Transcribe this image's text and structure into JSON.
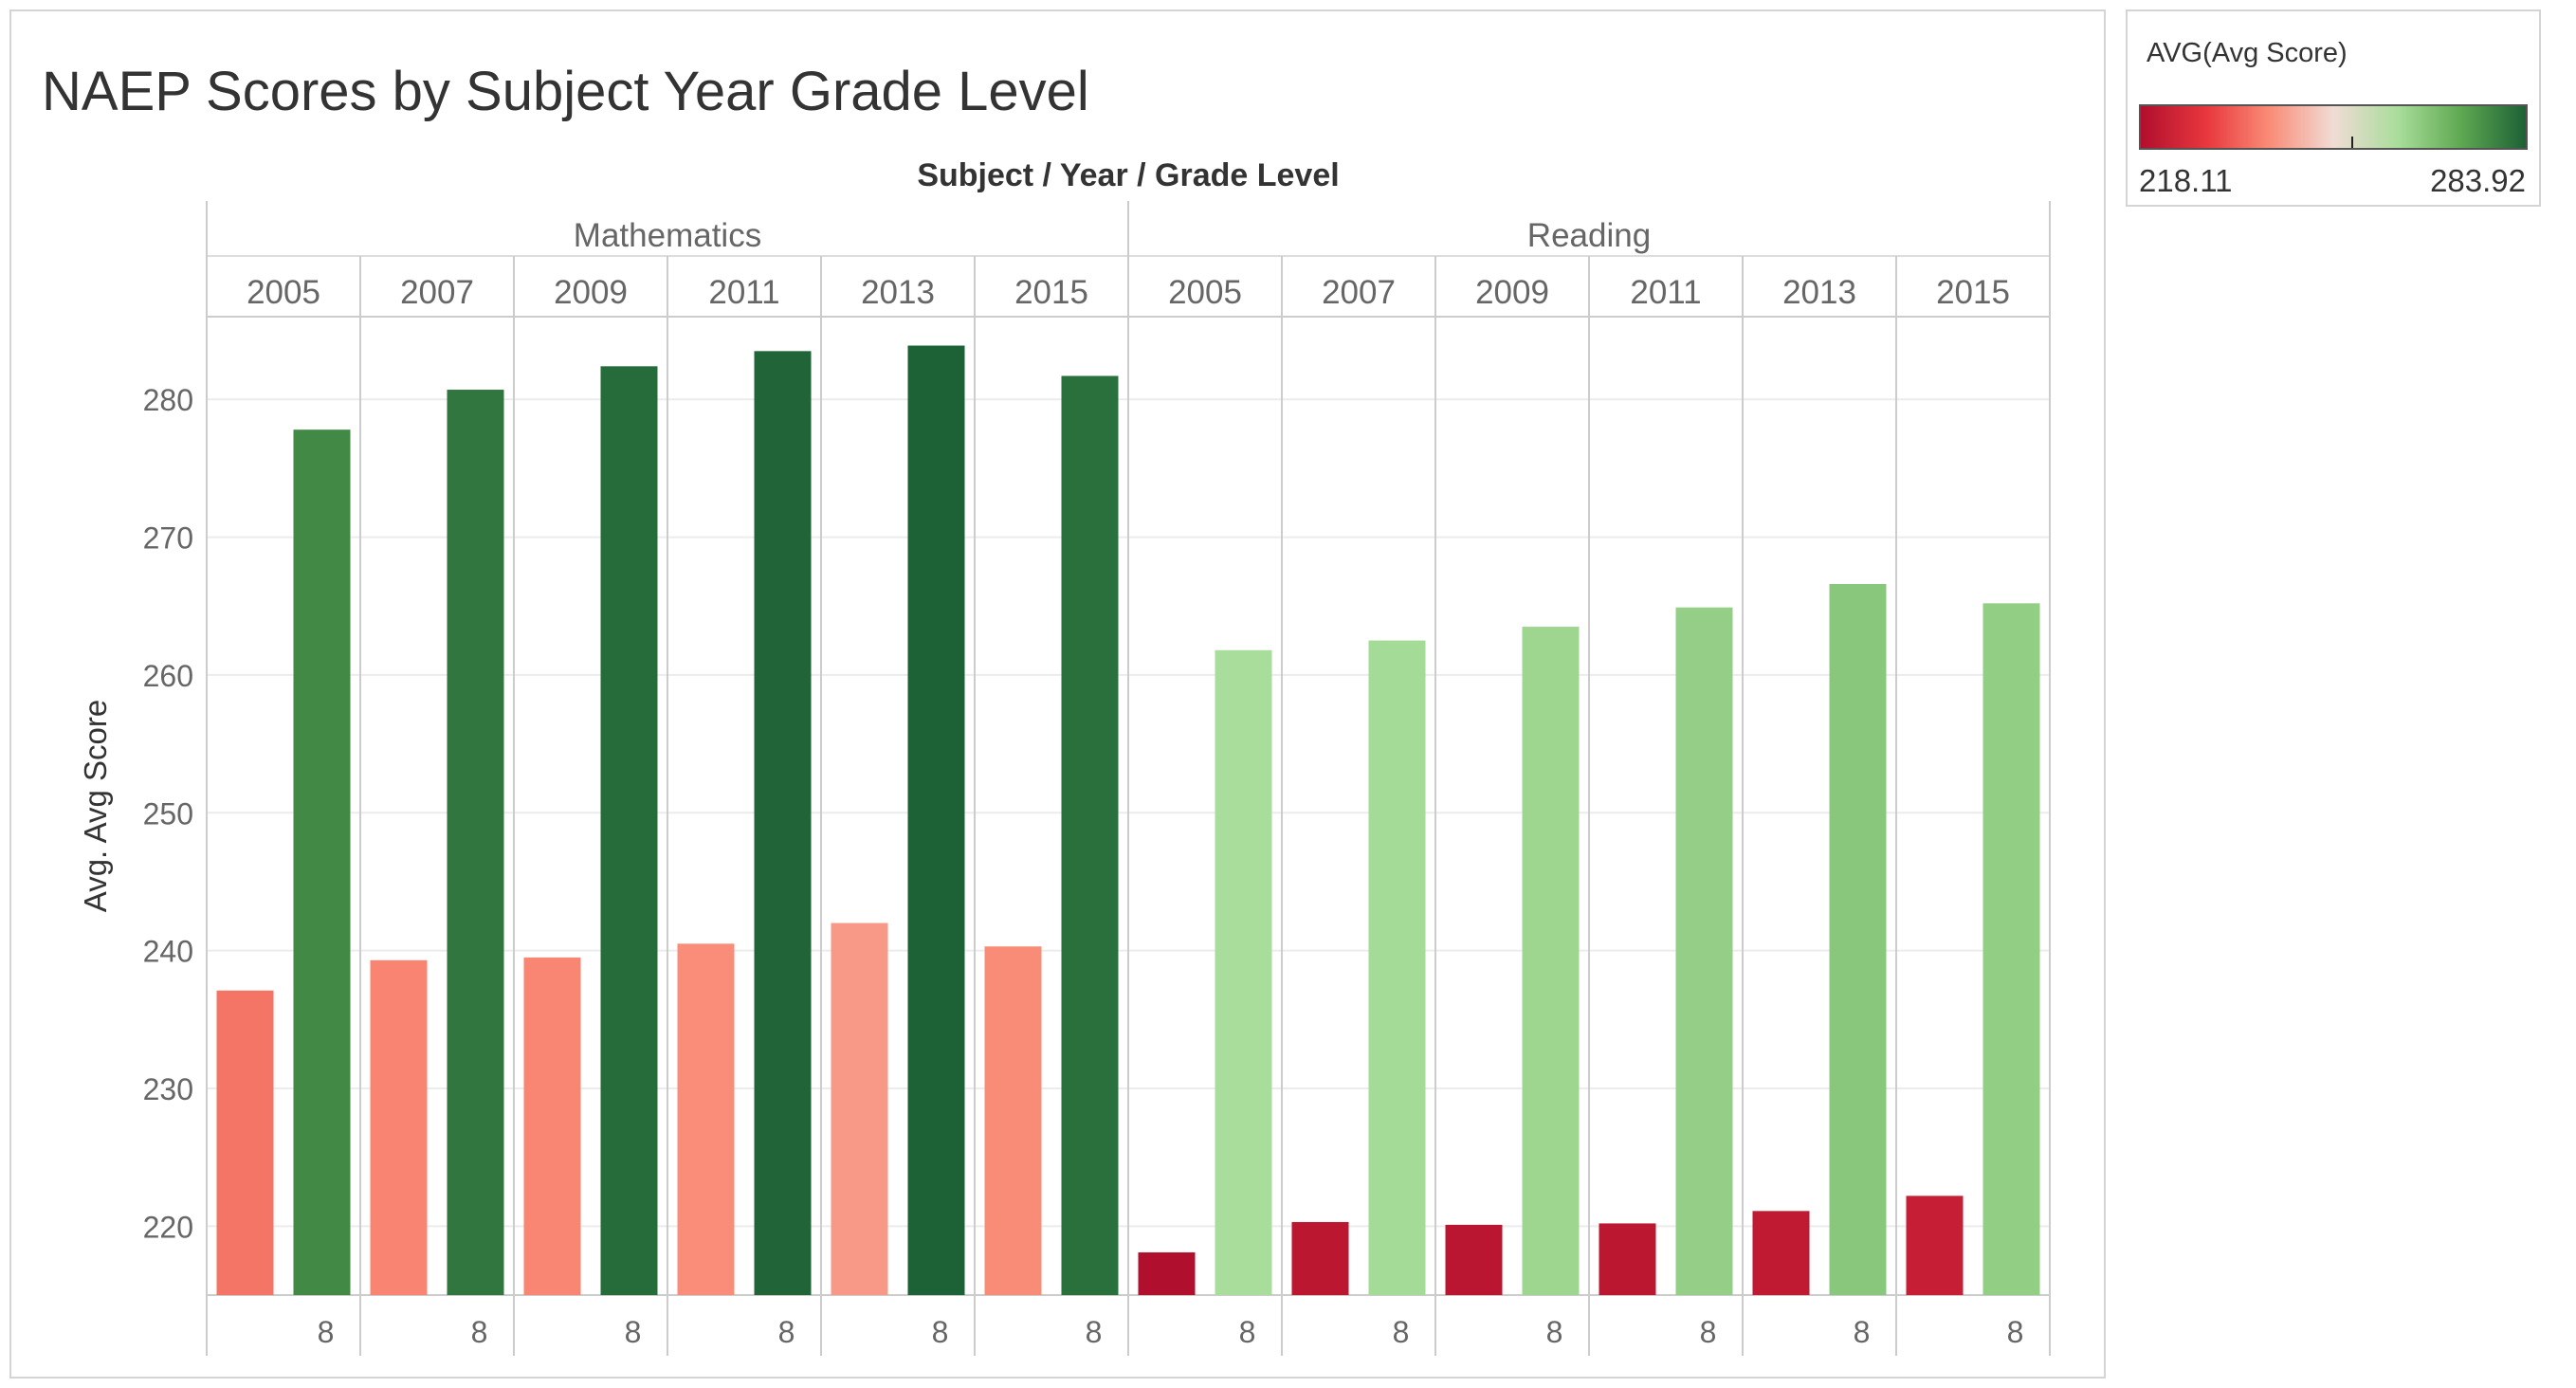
{
  "chart_data": {
    "type": "bar",
    "title": "NAEP Scores by Subject Year Grade Level",
    "header_title": "Subject  /  Year  /  Grade Level",
    "ylabel": "Avg. Avg Score",
    "ylim": [
      215,
      286
    ],
    "yticks": [
      220,
      230,
      240,
      250,
      260,
      270,
      280
    ],
    "grid": "horizontal",
    "subjects": [
      {
        "name": "Mathematics",
        "years": [
          {
            "year": "2005",
            "bars": [
              {
                "grade": "",
                "value": 237.1
              },
              {
                "grade": "8",
                "value": 277.8
              }
            ]
          },
          {
            "year": "2007",
            "bars": [
              {
                "grade": "",
                "value": 239.3
              },
              {
                "grade": "8",
                "value": 280.7
              }
            ]
          },
          {
            "year": "2009",
            "bars": [
              {
                "grade": "",
                "value": 239.5
              },
              {
                "grade": "8",
                "value": 282.4
              }
            ]
          },
          {
            "year": "2011",
            "bars": [
              {
                "grade": "",
                "value": 240.5
              },
              {
                "grade": "8",
                "value": 283.5
              }
            ]
          },
          {
            "year": "2013",
            "bars": [
              {
                "grade": "",
                "value": 242.0
              },
              {
                "grade": "8",
                "value": 283.9
              }
            ]
          },
          {
            "year": "2015",
            "bars": [
              {
                "grade": "",
                "value": 240.3
              },
              {
                "grade": "8",
                "value": 281.7
              }
            ]
          }
        ]
      },
      {
        "name": "Reading",
        "years": [
          {
            "year": "2005",
            "bars": [
              {
                "grade": "",
                "value": 218.1
              },
              {
                "grade": "8",
                "value": 261.8
              }
            ]
          },
          {
            "year": "2007",
            "bars": [
              {
                "grade": "",
                "value": 220.3
              },
              {
                "grade": "8",
                "value": 262.5
              }
            ]
          },
          {
            "year": "2009",
            "bars": [
              {
                "grade": "",
                "value": 220.1
              },
              {
                "grade": "8",
                "value": 263.5
              }
            ]
          },
          {
            "year": "2011",
            "bars": [
              {
                "grade": "",
                "value": 220.2
              },
              {
                "grade": "8",
                "value": 264.9
              }
            ]
          },
          {
            "year": "2013",
            "bars": [
              {
                "grade": "",
                "value": 221.1
              },
              {
                "grade": "8",
                "value": 266.6
              }
            ]
          },
          {
            "year": "2015",
            "bars": [
              {
                "grade": "",
                "value": 222.2
              },
              {
                "grade": "8",
                "value": 265.2
              }
            ]
          }
        ]
      }
    ],
    "color_legend": {
      "title": "AVG(Avg Score)",
      "min": 218.11,
      "max": 283.92,
      "min_label": "218.11",
      "max_label": "283.92",
      "center": 251.0,
      "colors": [
        "#b10f2e",
        "#e8373d",
        "#f98a75",
        "#f0dcd5",
        "#a8dd9a",
        "#5fa952",
        "#1d6136"
      ]
    }
  }
}
